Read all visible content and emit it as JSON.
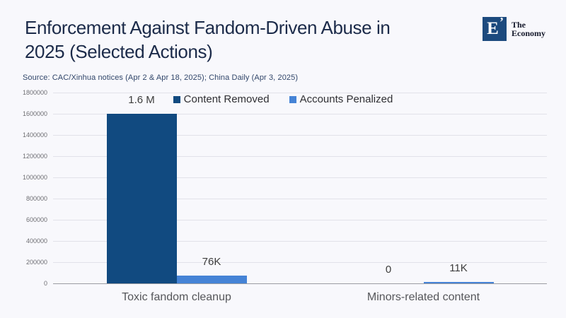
{
  "page": {
    "background": "#f8f8fc"
  },
  "header": {
    "title_lines": [
      "Enforcement Against Fandom-Driven Abuse in",
      "2025 (Selected Actions)"
    ],
    "source": "Source: CAC/Xinhua notices (Apr 2 & Apr 18, 2025); China Daily (Apr 3, 2025)"
  },
  "logo": {
    "monogram": "E",
    "mark": "’",
    "name_line1": "The",
    "name_line2": "Economy",
    "box_color": "#1c4a7e"
  },
  "chart_data": {
    "type": "bar",
    "title": "Enforcement Against Fandom-Driven Abuse in 2025 (Selected Actions)",
    "categories": [
      "Toxic fandom cleanup",
      "Minors-related content"
    ],
    "series": [
      {
        "name": "Content Removed",
        "color": "#114a80",
        "values": [
          1600000,
          0
        ],
        "labels": [
          "1.6 M",
          "0"
        ]
      },
      {
        "name": "Accounts Penalized",
        "color": "#4583d6",
        "values": [
          76000,
          11000
        ],
        "labels": [
          "76K",
          "11K"
        ]
      }
    ],
    "xlabel": "",
    "ylabel": "",
    "ylim": [
      0,
      1800000
    ],
    "yticks": [
      0,
      200000,
      400000,
      600000,
      800000,
      1000000,
      1200000,
      1400000,
      1600000,
      1800000
    ],
    "grid": true,
    "legend_position": "top"
  }
}
